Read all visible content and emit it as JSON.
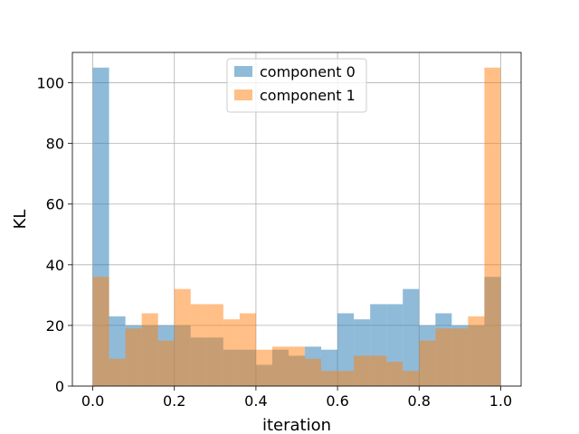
{
  "chart_data": {
    "type": "bar",
    "subtype": "overlapping-histogram",
    "xlabel": "iteration",
    "ylabel": "KL",
    "xlim": [
      -0.05,
      1.05
    ],
    "ylim": [
      0,
      110
    ],
    "x_ticks": [
      0.0,
      0.2,
      0.4,
      0.6,
      0.8,
      1.0
    ],
    "x_tick_labels": [
      "0.0",
      "0.2",
      "0.4",
      "0.6",
      "0.8",
      "1.0"
    ],
    "y_ticks": [
      0,
      20,
      40,
      60,
      80,
      100
    ],
    "y_tick_labels": [
      "0",
      "20",
      "40",
      "60",
      "80",
      "100"
    ],
    "grid": true,
    "legend_position": "top-center",
    "bin_edges": [
      0.0,
      0.04,
      0.08,
      0.12,
      0.16,
      0.2,
      0.24,
      0.28,
      0.32,
      0.36,
      0.4,
      0.44,
      0.48,
      0.52,
      0.56,
      0.6,
      0.64,
      0.68,
      0.72,
      0.76,
      0.8,
      0.84,
      0.88,
      0.92,
      0.96,
      1.0
    ],
    "series": [
      {
        "name": "component 0",
        "color": "#1f77b4",
        "alpha": 0.5,
        "values": [
          105,
          23,
          20,
          20,
          20,
          20,
          16,
          16,
          12,
          12,
          7,
          12,
          10,
          13,
          12,
          24,
          22,
          27,
          27,
          32,
          20,
          24,
          20,
          20,
          36
        ]
      },
      {
        "name": "component 1",
        "color": "#ff7f0e",
        "alpha": 0.5,
        "values": [
          36,
          9,
          19,
          24,
          15,
          32,
          27,
          27,
          22,
          24,
          12,
          13,
          13,
          9,
          5,
          5,
          10,
          10,
          8,
          5,
          15,
          19,
          19,
          23,
          105
        ]
      }
    ]
  }
}
